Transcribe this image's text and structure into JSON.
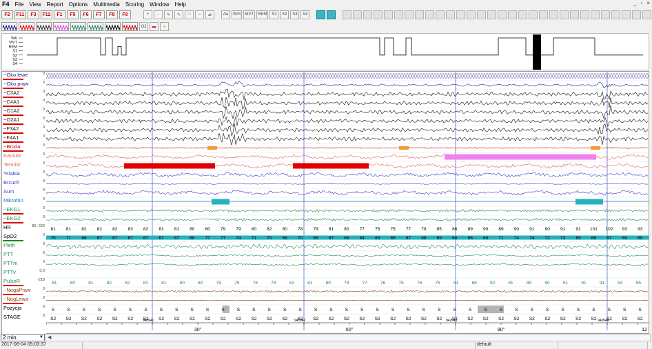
{
  "app": {
    "title": "F4"
  },
  "menu": [
    "File",
    "View",
    "Report",
    "Options",
    "Multimedia",
    "Scoring",
    "Window",
    "Help"
  ],
  "window_controls": [
    "_",
    "▫",
    "×"
  ],
  "toolbar1": {
    "f_keys": [
      "F2",
      "F11",
      "F3",
      "F12",
      "F1",
      "F5",
      "F6",
      "F7",
      "F8",
      "F9"
    ],
    "tools": [
      "+",
      "-",
      "✎",
      "✎",
      "□",
      "⇔",
      "⇄",
      "Aa",
      "W/S",
      "MVT",
      "REM",
      "S1",
      "S2",
      "S3",
      "S4"
    ],
    "grid_count": 30
  },
  "toolbar2": {
    "o2_label": "O2"
  },
  "colors": {
    "eeg_label": "#1a1a8c",
    "red": "#e00000",
    "blue": "#1b3dbf",
    "green": "#1a8a5a",
    "teal": "#24b2bc",
    "pink": "#ee82ee",
    "orange": "#f39a3a",
    "brown": "#8b4513",
    "gray": "#b4b4b4"
  },
  "hypnogram": {
    "stages": [
      "WK",
      "MVT",
      "REM",
      "S1",
      "S2",
      "S3",
      "S4"
    ]
  },
  "channels": [
    {
      "label": "~Oko lewe",
      "color": "#1a1a8c",
      "under": "#e00000",
      "scale": "0"
    },
    {
      "label": "~Oko praw",
      "color": "#1a1a8c",
      "under": "#e00000",
      "scale": "0"
    },
    {
      "label": "~C3A2",
      "color": "#1a1a1a",
      "under": "#e00000",
      "scale": "0"
    },
    {
      "label": "~C4A1",
      "color": "#1a1a1a",
      "under": "#e00000",
      "scale": "0"
    },
    {
      "label": "~O1A2",
      "color": "#1a1a1a",
      "under": "#e00000",
      "scale": "0"
    },
    {
      "label": "~O2A1",
      "color": "#1a1a1a",
      "under": "#e00000",
      "scale": "0"
    },
    {
      "label": "~F3A2",
      "color": "#1a1a1a",
      "under": "#e00000",
      "scale": "0"
    },
    {
      "label": "~F4A1",
      "color": "#1a1a1a",
      "under": "#e00000",
      "scale": "0"
    },
    {
      "label": "~Broda",
      "color": "#c00000",
      "under": "#e00000",
      "scale": "0"
    },
    {
      "label": "Kaniula",
      "color": "#e06060",
      "under": "",
      "scale": "0"
    },
    {
      "label": "Termist",
      "color": "#e06060",
      "under": "",
      "scale": "0"
    },
    {
      "label": "*Klatka",
      "color": "#3a3acc",
      "under": "",
      "scale": "0"
    },
    {
      "label": "Brzuch",
      "color": "#3a3acc",
      "under": "",
      "scale": "0"
    },
    {
      "label": "Sum",
      "color": "#3a3acc",
      "under": "",
      "scale": "0"
    },
    {
      "label": "Mikrofon",
      "color": "#1b78b0",
      "under": "",
      "scale": "0"
    },
    {
      "label": "~EKG1",
      "color": "#1a8a5a",
      "under": "#e00000",
      "scale": "0"
    },
    {
      "label": "~EKG2",
      "color": "#1a8a5a",
      "under": "#e00000",
      "scale": "0"
    },
    {
      "label": "HR",
      "color": "#000000",
      "under": "",
      "scale": "80 -220"
    },
    {
      "label": "SpO2",
      "color": "#000000",
      "under": "#1a8a1a",
      "scale": "0"
    },
    {
      "label": "Pleth",
      "color": "#1a8a5a",
      "under": "",
      "scale": "0"
    },
    {
      "label": "PTT",
      "color": "#1a8a5a",
      "under": "",
      "scale": "0"
    },
    {
      "label": "PTTm",
      "color": "#1a8a5a",
      "under": "",
      "scale": "0"
    },
    {
      "label": "PTTv",
      "color": "#1a8a5a",
      "under": "",
      "scale": "0.0"
    },
    {
      "label": "PulseR",
      "color": "#1a8a5a",
      "under": "#e00000",
      "scale": "-218"
    },
    {
      "label": "~NogaPraw",
      "color": "#8b4513",
      "under": "#e00000",
      "scale": "0"
    },
    {
      "label": "~NogLewa",
      "color": "#8b4513",
      "under": "#e00000",
      "scale": "0"
    },
    {
      "label": "Pozycja",
      "color": "#000000",
      "under": "",
      "scale": "0"
    },
    {
      "label": "STAGE",
      "color": "#000000",
      "under": "",
      "scale": "0"
    }
  ],
  "hr_values": [
    "81",
    "81",
    "82",
    "82",
    "82",
    "83",
    "82",
    "81",
    "81",
    "80",
    "80",
    "79",
    "79",
    "80",
    "82",
    "80",
    "78",
    "79",
    "81",
    "80",
    "77",
    "75",
    "75",
    "77",
    "79",
    "85",
    "86",
    "89",
    "90",
    "89",
    "90",
    "91",
    "90",
    "91",
    "91",
    "101",
    "102",
    "93",
    "93"
  ],
  "spo2_values": [
    "75",
    "71",
    "68",
    "67",
    "67",
    "67",
    "67",
    "67",
    "67",
    "68",
    "77",
    "77",
    "74",
    "71",
    "70",
    "69",
    "70",
    "69",
    "67",
    "66",
    "64",
    "63",
    "65",
    "67",
    "68",
    "69",
    "66",
    "66",
    "68",
    "71",
    "74",
    "74",
    "72",
    "73",
    "69",
    "68",
    "67",
    "69",
    "69"
  ],
  "pulse_values": [
    "81",
    "80",
    "81",
    "82",
    "82",
    "81",
    "81",
    "80",
    "80",
    "79",
    "79",
    "78",
    "79",
    "81",
    "81",
    "80",
    "79",
    "77",
    "76",
    "75",
    "76",
    "75",
    "81",
    "88",
    "92",
    "91",
    "89",
    "90",
    "91",
    "91",
    "91",
    "94",
    "95"
  ],
  "stage_values": [
    "S2",
    "S2",
    "S2",
    "S2",
    "S2",
    "S2",
    "S2",
    "S2",
    "S2",
    "S2",
    "S2",
    "S2",
    "S2",
    "S2",
    "S2",
    "S2",
    "S2",
    "S2",
    "S2",
    "S2",
    "S2",
    "S2",
    "S2",
    "S2",
    "S2",
    "S2",
    "S2",
    "S2",
    "S2",
    "S2",
    "S2",
    "S2",
    "S2",
    "S2",
    "S2",
    "S2",
    "S2",
    "S2",
    "S2"
  ],
  "epoch_markers": [
    "940",
    "941",
    "941",
    "942",
    "942",
    "943",
    "943",
    "944"
  ],
  "time_axis": [
    "30\"",
    "60\"",
    "90\"",
    "12"
  ],
  "bottom": {
    "window_length": "2 min.",
    "datetime": "2017-08-04 05:03:37",
    "profile": "default"
  }
}
